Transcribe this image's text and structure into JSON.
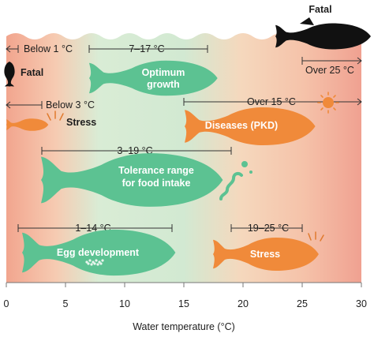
{
  "axis": {
    "xlabel": "Water temperature (°C)",
    "min": 0,
    "max": 30,
    "ticks": [
      "0",
      "5",
      "10",
      "15",
      "20",
      "25",
      "30"
    ]
  },
  "colors": {
    "cold": "#f2a58e",
    "optimal": "#cfe8cf",
    "warm": "#f6d3b6",
    "hot": "#f0a191",
    "green_fish": "#5cc292",
    "orange_fish": "#f08a3a",
    "black_fish": "#111111",
    "sun": "#f08a3a"
  },
  "icons": {
    "sun": "sun-icon",
    "stress_marks": "stress-lines-icon",
    "pathogen": "pathogen-icon",
    "eggs": "egg-cluster-icon"
  },
  "zones": [
    {
      "name": "below-1",
      "label": "Below 1 °C",
      "from": 0,
      "to": 1,
      "open_left": true
    },
    {
      "name": "optimum",
      "label": "7–17 °C",
      "from": 7,
      "to": 17
    },
    {
      "name": "over-25",
      "label": "Over 25 °C",
      "from": 25,
      "to": 30,
      "open_right": true
    },
    {
      "name": "below-3",
      "label": "Below 3 °C",
      "from": 0,
      "to": 3,
      "open_left": true
    },
    {
      "name": "over-15",
      "label": "Over 15 °C",
      "from": 15,
      "to": 30,
      "open_right": true
    },
    {
      "name": "tolerance",
      "label": "3–19 °C",
      "from": 3,
      "to": 19
    },
    {
      "name": "egg",
      "label": "1–14 °C",
      "from": 1,
      "to": 14
    },
    {
      "name": "stress-warm",
      "label": "19–25 °C",
      "from": 19,
      "to": 25
    }
  ],
  "fish_labels": {
    "fatal_cold": "Fatal",
    "fatal_hot": "Fatal",
    "stress_cold": "Stress",
    "optimum": [
      "Optimum",
      "growth"
    ],
    "diseases": "Diseases (PKD)",
    "tolerance": [
      "Tolerance range",
      "for food intake"
    ],
    "egg": "Egg development",
    "stress_warm": "Stress"
  }
}
